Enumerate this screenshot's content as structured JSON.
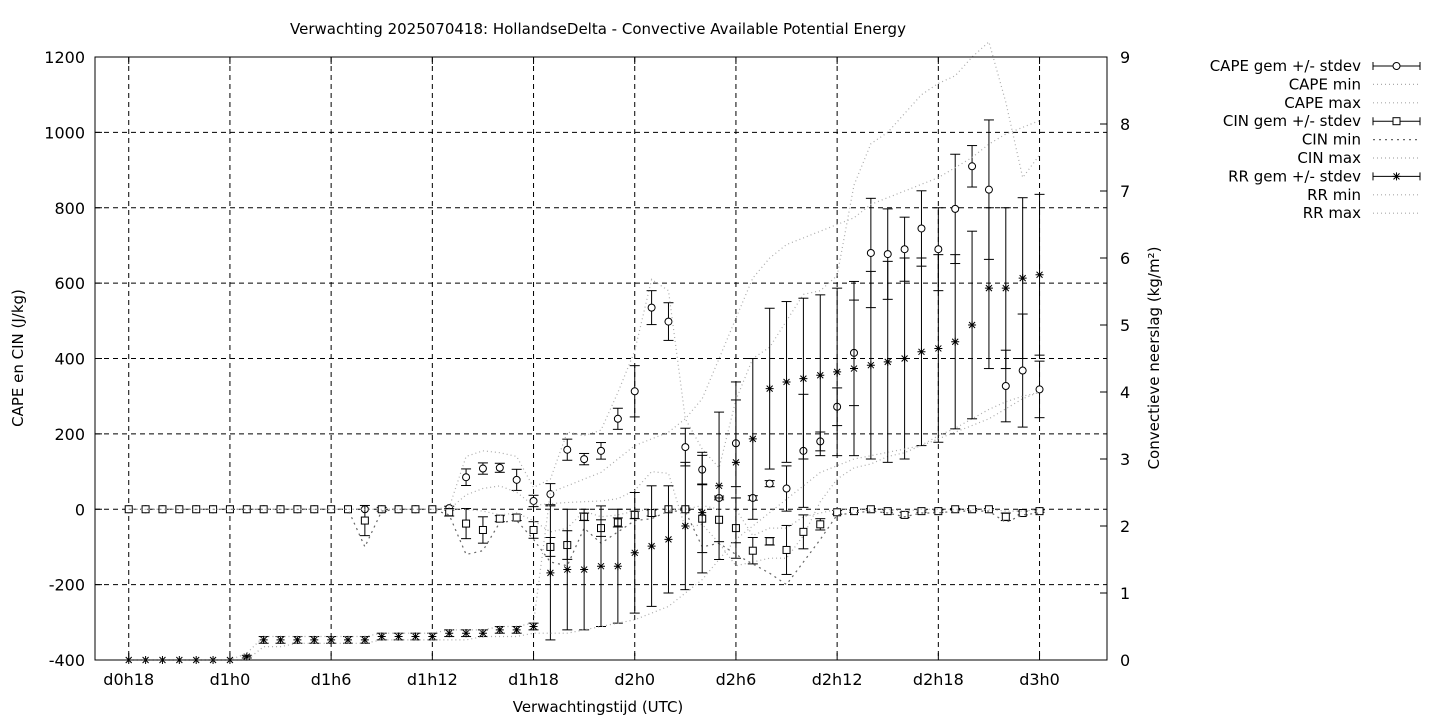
{
  "chart_data": {
    "type": "line",
    "title": "Verwachting 2025070418: HollandseDelta - Convective Available Potential Energy",
    "xlabel": "Verwachtingstijd (UTC)",
    "ylabel": "CAPE en CIN (J/kg)",
    "y2label": "Convectieve neerslag (kg/m²)",
    "xlim": [
      -2,
      58
    ],
    "ylim": [
      -400,
      1200
    ],
    "y2lim": [
      0,
      9
    ],
    "grid": true,
    "legend_position": "outside-right",
    "x_ticks": [
      {
        "x": 0,
        "label": "d0h18"
      },
      {
        "x": 6,
        "label": "d1h0"
      },
      {
        "x": 12,
        "label": "d1h6"
      },
      {
        "x": 18,
        "label": "d1h12"
      },
      {
        "x": 24,
        "label": "d1h18"
      },
      {
        "x": 30,
        "label": "d2h0"
      },
      {
        "x": 36,
        "label": "d2h6"
      },
      {
        "x": 42,
        "label": "d2h12"
      },
      {
        "x": 48,
        "label": "d2h18"
      },
      {
        "x": 54,
        "label": "d3h0"
      }
    ],
    "y_ticks": [
      -400,
      -200,
      0,
      200,
      400,
      600,
      800,
      1000,
      1200
    ],
    "y2_ticks": [
      0,
      1,
      2,
      3,
      4,
      5,
      6,
      7,
      8,
      9
    ],
    "x": [
      0,
      1,
      2,
      3,
      4,
      5,
      6,
      7,
      8,
      9,
      10,
      11,
      12,
      13,
      14,
      15,
      16,
      17,
      18,
      19,
      20,
      21,
      22,
      23,
      24,
      25,
      26,
      27,
      28,
      29,
      30,
      31,
      32,
      33,
      34,
      35,
      36,
      37,
      38,
      39,
      40,
      41,
      42,
      43,
      44,
      45,
      46,
      47,
      48,
      49,
      50,
      51,
      52,
      53,
      54
    ],
    "series": [
      {
        "name": "CAPE gem +/- stdev",
        "marker": "circle",
        "axis": "y1",
        "values": [
          0,
          0,
          0,
          0,
          0,
          0,
          0,
          0,
          0,
          0,
          0,
          0,
          0,
          0,
          0,
          0,
          0,
          0,
          0,
          3,
          85,
          108,
          110,
          78,
          22,
          40,
          158,
          133,
          155,
          240,
          313,
          535,
          498,
          165,
          105,
          30,
          175,
          30,
          68,
          55,
          155,
          180,
          272,
          415,
          680,
          677,
          690,
          745,
          690,
          797,
          910,
          848,
          327,
          368,
          318
        ],
        "stdev": [
          0,
          0,
          0,
          0,
          0,
          0,
          0,
          0,
          0,
          0,
          0,
          0,
          0,
          0,
          0,
          0,
          0,
          0,
          0,
          5,
          22,
          15,
          12,
          28,
          15,
          28,
          28,
          15,
          22,
          28,
          68,
          45,
          50,
          50,
          38,
          5,
          115,
          6,
          8,
          60,
          150,
          25,
          50,
          140,
          145,
          120,
          85,
          100,
          110,
          145,
          55,
          185,
          95,
          150,
          75
        ]
      },
      {
        "name": "CAPE min",
        "style": "dotted",
        "axis": "y1",
        "values": [
          0,
          0,
          0,
          0,
          0,
          0,
          0,
          0,
          0,
          0,
          0,
          0,
          0,
          0,
          0,
          0,
          0,
          0,
          0,
          0,
          38,
          55,
          62,
          45,
          10,
          15,
          18,
          20,
          22,
          28,
          50,
          100,
          95,
          -50,
          -40,
          -90,
          -150,
          -140,
          -130,
          -130,
          -70,
          20,
          80,
          110,
          120,
          140,
          150,
          170,
          195,
          215,
          240,
          265,
          285,
          300,
          310
        ]
      },
      {
        "name": "CAPE max",
        "style": "dotted",
        "axis": "y1",
        "values": [
          0,
          0,
          0,
          0,
          0,
          0,
          0,
          0,
          0,
          0,
          0,
          0,
          0,
          0,
          0,
          0,
          0,
          0,
          0,
          5,
          140,
          155,
          150,
          140,
          58,
          80,
          205,
          195,
          210,
          310,
          420,
          610,
          580,
          240,
          160,
          110,
          290,
          400,
          430,
          500,
          570,
          580,
          620,
          860,
          970,
          1000,
          1050,
          1100,
          1130,
          1150,
          1200,
          1240,
          1080,
          880,
          940
        ]
      },
      {
        "name": "CIN gem +/- stdev",
        "marker": "square",
        "axis": "y1",
        "values": [
          0,
          0,
          0,
          0,
          0,
          0,
          0,
          0,
          0,
          0,
          0,
          0,
          0,
          0,
          -30,
          0,
          0,
          0,
          0,
          -8,
          -38,
          -55,
          -25,
          -22,
          -55,
          -100,
          -95,
          -20,
          -50,
          -35,
          -15,
          -10,
          0,
          0,
          -25,
          -28,
          -50,
          -110,
          -85,
          -108,
          -60,
          -40,
          -8,
          -5,
          0,
          -5,
          -15,
          -5,
          -5,
          0,
          0,
          0,
          -20,
          -10,
          -5
        ],
        "stdev": [
          0,
          0,
          0,
          0,
          0,
          0,
          0,
          0,
          0,
          0,
          0,
          0,
          0,
          0,
          40,
          5,
          0,
          0,
          0,
          10,
          40,
          35,
          8,
          8,
          22,
          25,
          38,
          10,
          22,
          12,
          10,
          8,
          0,
          3,
          90,
          58,
          80,
          35,
          10,
          65,
          45,
          15,
          5,
          3,
          2,
          3,
          7,
          3,
          3,
          2,
          2,
          2,
          10,
          5,
          3
        ]
      },
      {
        "name": "CIN min",
        "style": "dotted",
        "axis": "y1",
        "values": [
          0,
          0,
          0,
          0,
          0,
          0,
          0,
          0,
          0,
          0,
          0,
          0,
          0,
          0,
          -100,
          -5,
          0,
          0,
          0,
          -15,
          -120,
          -110,
          -35,
          -30,
          -80,
          -140,
          -150,
          -50,
          -90,
          -60,
          -30,
          -25,
          -5,
          -5,
          -100,
          -90,
          -120,
          -145,
          -170,
          -200,
          -140,
          -80,
          -15,
          -10,
          -5,
          -10,
          -20,
          -10,
          -10,
          -5,
          -5,
          -5,
          -35,
          -15,
          -10
        ]
      },
      {
        "name": "CIN max",
        "style": "dotted",
        "axis": "y1",
        "values": [
          0,
          0,
          0,
          0,
          0,
          0,
          0,
          0,
          0,
          0,
          0,
          0,
          0,
          0,
          0,
          0,
          0,
          0,
          0,
          0,
          0,
          -5,
          -15,
          -10,
          -30,
          -60,
          -50,
          -5,
          -20,
          -15,
          -5,
          0,
          0,
          0,
          10,
          0,
          0,
          -70,
          -50,
          -50,
          -20,
          -10,
          0,
          0,
          0,
          0,
          -5,
          0,
          0,
          0,
          0,
          0,
          -5,
          -5,
          0
        ]
      },
      {
        "name": "RR gem +/- stdev",
        "marker": "star",
        "axis": "y2",
        "values": [
          0,
          0,
          0,
          0,
          0,
          0,
          0,
          0.05,
          0.3,
          0.3,
          0.3,
          0.3,
          0.3,
          0.3,
          0.3,
          0.35,
          0.35,
          0.35,
          0.35,
          0.4,
          0.4,
          0.4,
          0.45,
          0.45,
          0.5,
          1.3,
          1.35,
          1.35,
          1.4,
          1.4,
          1.6,
          1.7,
          1.8,
          2.0,
          2.2,
          2.6,
          2.95,
          3.3,
          4.05,
          4.15,
          4.2,
          4.25,
          4.3,
          4.35,
          4.4,
          4.45,
          4.5,
          4.6,
          4.65,
          4.75,
          5.0,
          5.55,
          5.55,
          5.7,
          5.75
        ],
        "stdev": [
          0,
          0,
          0,
          0,
          0,
          0,
          0,
          0.02,
          0.05,
          0.05,
          0.05,
          0.05,
          0.05,
          0.05,
          0.05,
          0.05,
          0.05,
          0.05,
          0.05,
          0.05,
          0.05,
          0.05,
          0.05,
          0.05,
          0.05,
          1.0,
          0.9,
          0.9,
          0.9,
          0.85,
          0.9,
          0.9,
          0.8,
          0.95,
          0.9,
          1.1,
          1.2,
          1.2,
          1.2,
          1.2,
          1.2,
          1.2,
          1.25,
          1.3,
          1.4,
          1.5,
          1.5,
          1.4,
          1.4,
          1.3,
          1.4,
          1.2,
          1.2,
          1.2,
          1.2
        ]
      },
      {
        "name": "RR min",
        "style": "dotted",
        "axis": "y2",
        "values": [
          0,
          0,
          0,
          0,
          0,
          0,
          0,
          0,
          0.2,
          0.2,
          0.25,
          0.25,
          0.25,
          0.25,
          0.25,
          0.3,
          0.3,
          0.3,
          0.3,
          0.3,
          0.3,
          0.35,
          0.35,
          0.35,
          0.4,
          0.4,
          0.4,
          0.45,
          0.5,
          0.55,
          0.6,
          0.7,
          0.8,
          1.0,
          1.2,
          1.5,
          1.8,
          2.0,
          2.2,
          2.4,
          2.6,
          2.8,
          2.9,
          3.0,
          3.05,
          3.1,
          3.15,
          3.2,
          3.3,
          3.4,
          3.5,
          3.6,
          3.75,
          3.9,
          4.0
        ]
      },
      {
        "name": "RR max",
        "style": "dotted",
        "axis": "y2",
        "values": [
          0,
          0,
          0,
          0,
          0,
          0,
          0,
          0.1,
          0.35,
          0.35,
          0.35,
          0.35,
          0.35,
          0.35,
          0.35,
          0.4,
          0.4,
          0.4,
          0.4,
          0.45,
          0.45,
          0.45,
          0.5,
          0.5,
          0.55,
          2.5,
          2.6,
          2.7,
          2.8,
          3.0,
          3.2,
          3.3,
          3.4,
          3.6,
          3.9,
          4.5,
          5.1,
          5.7,
          6.0,
          6.2,
          6.3,
          6.4,
          6.5,
          6.6,
          6.8,
          6.9,
          7.0,
          7.1,
          7.2,
          7.35,
          7.5,
          7.7,
          7.85,
          7.95,
          8.05
        ]
      }
    ]
  }
}
